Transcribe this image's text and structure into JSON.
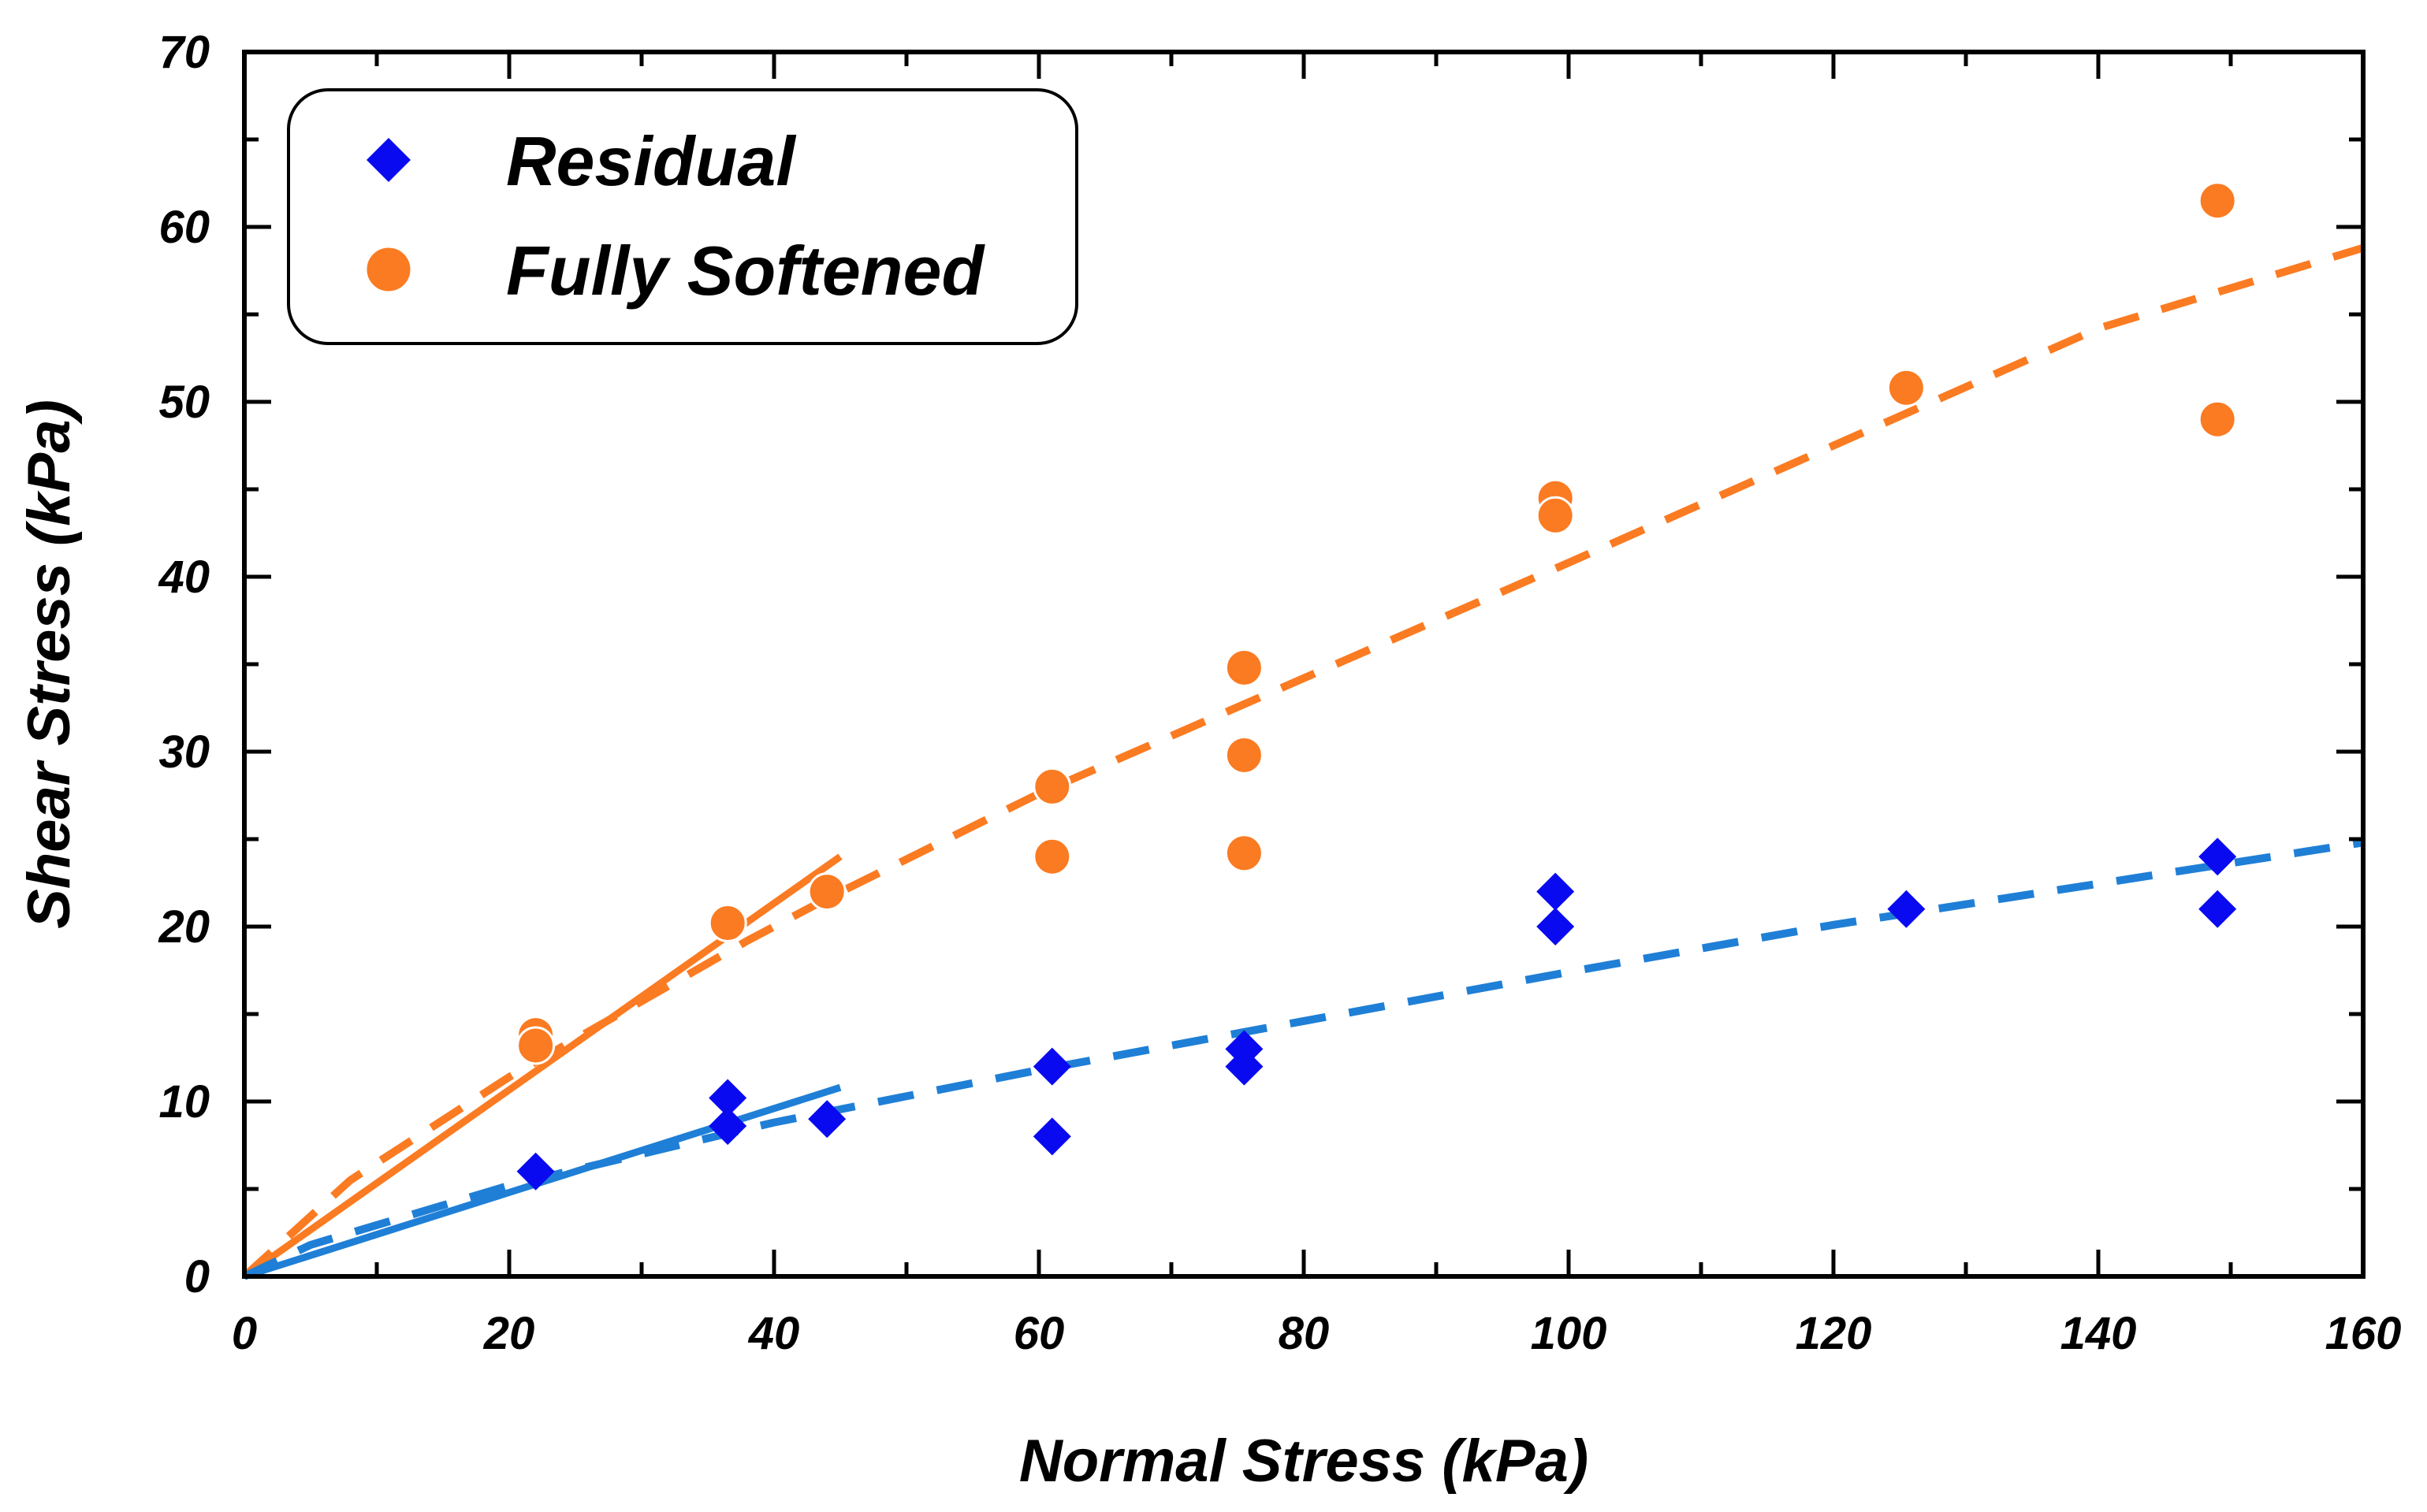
{
  "chart_data": {
    "type": "scatter",
    "xlabel": "Normal Stress (kPa)",
    "ylabel": "Shear Stress (kPa)",
    "xlim": [
      0,
      160
    ],
    "ylim": [
      0,
      70
    ],
    "xticks": [
      0,
      20,
      40,
      60,
      80,
      100,
      120,
      140,
      160
    ],
    "yticks": [
      0,
      10,
      20,
      30,
      40,
      50,
      60,
      70
    ],
    "grid": false,
    "legend_position": "top-left",
    "series": [
      {
        "name": "Residual",
        "marker": "diamond",
        "color": "#0a0af0",
        "points": [
          [
            22,
            6
          ],
          [
            36.5,
            10.2
          ],
          [
            36.5,
            8.6
          ],
          [
            44,
            9
          ],
          [
            61,
            12
          ],
          [
            61,
            8
          ],
          [
            75.5,
            13
          ],
          [
            75.5,
            12
          ],
          [
            99,
            22
          ],
          [
            99,
            20
          ],
          [
            125.5,
            21
          ],
          [
            149,
            24
          ],
          [
            149,
            21
          ]
        ]
      },
      {
        "name": "Fully Softened",
        "marker": "circle",
        "color": "#fb7b22",
        "points": [
          [
            22,
            13.8
          ],
          [
            22,
            13.2
          ],
          [
            36.5,
            20.2
          ],
          [
            44,
            22
          ],
          [
            61,
            28
          ],
          [
            61,
            24
          ],
          [
            75.5,
            34.8
          ],
          [
            75.5,
            29.8
          ],
          [
            75.5,
            24.2
          ],
          [
            99,
            44.5
          ],
          [
            99,
            43.5
          ],
          [
            125.5,
            50.8
          ],
          [
            149,
            61.5
          ],
          [
            149,
            49
          ]
        ]
      }
    ],
    "fit_lines": [
      {
        "name": "Fully Softened solid fit",
        "style": "solid",
        "color": "#fb7b22",
        "points": [
          [
            0,
            0
          ],
          [
            45,
            24
          ]
        ]
      },
      {
        "name": "Fully Softened dashed fit",
        "style": "dashed",
        "color": "#fb7b22",
        "points": [
          [
            0,
            0
          ],
          [
            8,
            5.5
          ],
          [
            20,
            11.4
          ],
          [
            38,
            19.2
          ],
          [
            44,
            21.6
          ],
          [
            60,
            27.6
          ],
          [
            100,
            40.8
          ],
          [
            140,
            54.2
          ],
          [
            160,
            58.8
          ]
        ]
      },
      {
        "name": "Residual solid fit",
        "style": "solid",
        "color": "#1f7fd6",
        "points": [
          [
            0,
            0
          ],
          [
            45,
            10.8
          ]
        ]
      },
      {
        "name": "Residual dashed fit",
        "style": "dashed",
        "color": "#1f7fd6",
        "points": [
          [
            0,
            0
          ],
          [
            5,
            1.8
          ],
          [
            20,
            5.2
          ],
          [
            40,
            8.8
          ],
          [
            60,
            11.8
          ],
          [
            80,
            14.6
          ],
          [
            100,
            17.4
          ],
          [
            120,
            20.1
          ],
          [
            160,
            24.8
          ]
        ]
      }
    ]
  }
}
